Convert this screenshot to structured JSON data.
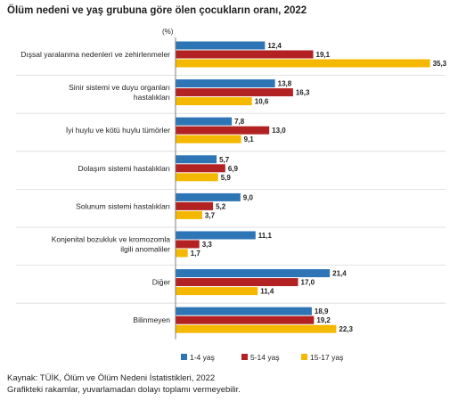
{
  "title": "Ölüm nedeni ve yaş grubuna göre ölen çocukların oranı, 2022",
  "unit": "(%)",
  "source_line1": "Kaynak: TÜİK, Ölüm ve Ölüm Nedeni İstatistikleri, 2022",
  "source_line2": "Grafikteki rakamlar, yuvarlamadan dolayı toplamı vermeyebilir.",
  "chart_data": {
    "type": "bar",
    "orientation": "horizontal",
    "unit": "(%)",
    "categories": [
      [
        "Dışsal yaralanma nedenleri ve zehirlenmeler"
      ],
      [
        "Sinir sistemi ve duyu organları",
        "hastalıkları"
      ],
      [
        "İyi huylu ve kötü huylu tümörler"
      ],
      [
        "Dolaşım sistemi hastalıkları"
      ],
      [
        "Solunum sistemi hastalıkları"
      ],
      [
        "Konjenital bozukluk ve kromozomla",
        "ilgili anomaliler"
      ],
      [
        "Diğer"
      ],
      [
        "Bilinmeyen"
      ]
    ],
    "series": [
      {
        "name": "1-4 yaş",
        "color": "#2e75b6",
        "values": [
          12.4,
          13.8,
          7.8,
          5.7,
          9.0,
          11.1,
          21.4,
          18.9
        ]
      },
      {
        "name": "5-14 yaş",
        "color": "#b22222",
        "values": [
          19.1,
          16.3,
          13.0,
          6.9,
          5.2,
          3.3,
          17.0,
          19.2
        ]
      },
      {
        "name": "15-17 yaş",
        "color": "#f5b800",
        "values": [
          35.3,
          10.6,
          9.1,
          5.9,
          3.7,
          1.7,
          11.4,
          22.3
        ]
      }
    ],
    "xlim": [
      0,
      36
    ],
    "grid": false,
    "legend_position": "bottom"
  }
}
